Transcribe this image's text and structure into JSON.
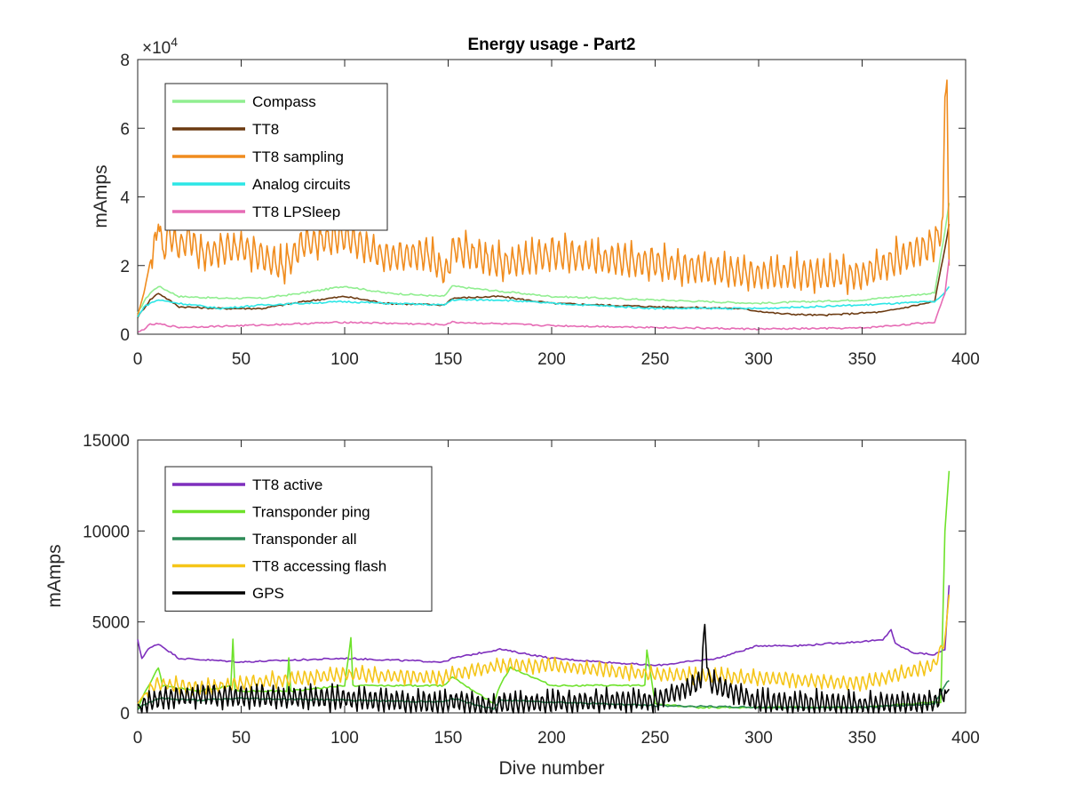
{
  "title": "Energy usage - Part2",
  "chart_data": [
    {
      "type": "line",
      "title": "Energy usage - Part2",
      "xlabel": "",
      "ylabel": "mAmps",
      "xlim": [
        0,
        400
      ],
      "ylim": [
        0,
        80000
      ],
      "x_ticks": [
        "0",
        "50",
        "100",
        "150",
        "200",
        "250",
        "300",
        "350",
        "400"
      ],
      "y_ticks": [
        "0",
        "2",
        "4",
        "6",
        "8"
      ],
      "y_exponent_label": "×10",
      "y_exponent_power": "4",
      "grid": false,
      "legend_position": "top-left",
      "series": [
        {
          "name": "Compass",
          "color": "#90ee90",
          "x": [
            0,
            3,
            6,
            10,
            20,
            40,
            60,
            80,
            100,
            120,
            148,
            152,
            175,
            200,
            250,
            300,
            350,
            385,
            390,
            392
          ],
          "values": [
            6000,
            9500,
            12000,
            14000,
            11000,
            10500,
            10500,
            12000,
            14000,
            12000,
            11000,
            14000,
            12500,
            11000,
            10000,
            9000,
            10000,
            12000,
            30000,
            38000
          ]
        },
        {
          "name": "TT8",
          "color": "#6b3a11",
          "x": [
            0,
            3,
            6,
            10,
            20,
            40,
            60,
            80,
            100,
            120,
            148,
            152,
            175,
            200,
            250,
            290,
            310,
            330,
            360,
            385,
            390,
            392
          ],
          "values": [
            5000,
            7500,
            10000,
            12000,
            8000,
            7500,
            7500,
            9500,
            11000,
            9000,
            8500,
            10500,
            11000,
            9000,
            8000,
            7500,
            6000,
            5500,
            6500,
            9500,
            25000,
            32000
          ]
        },
        {
          "name": "TT8 sampling",
          "color": "#f08c1e",
          "x": [
            0,
            3,
            6,
            9,
            10,
            12,
            15,
            20,
            25,
            30,
            50,
            70,
            80,
            100,
            120,
            140,
            148,
            150,
            152,
            175,
            200,
            250,
            300,
            350,
            385,
            389,
            390,
            391,
            392
          ],
          "values": [
            5500,
            12000,
            21000,
            25000,
            34000,
            22000,
            28000,
            24000,
            27000,
            22000,
            24000,
            18000,
            25000,
            27000,
            21000,
            22000,
            17000,
            17000,
            24000,
            19000,
            22000,
            19000,
            16000,
            16000,
            25000,
            30000,
            68000,
            74000,
            20000
          ],
          "spikes": {
            "start": 7,
            "end": 390,
            "step": 3.2,
            "amplitude": 11000,
            "period": 3.2
          }
        },
        {
          "name": "Analog circuits",
          "color": "#2ce6e6",
          "x": [
            0,
            3,
            6,
            10,
            20,
            40,
            60,
            80,
            100,
            120,
            148,
            152,
            175,
            200,
            250,
            300,
            350,
            385,
            390,
            392
          ],
          "values": [
            5000,
            8000,
            9000,
            10000,
            9000,
            7500,
            8500,
            9000,
            9500,
            9000,
            8500,
            10000,
            10000,
            9000,
            7500,
            7500,
            8500,
            9500,
            12000,
            14000
          ]
        },
        {
          "name": "TT8 LPSleep",
          "color": "#e66cb5",
          "x": [
            0,
            3,
            6,
            10,
            20,
            50,
            100,
            148,
            152,
            200,
            250,
            300,
            350,
            385,
            390,
            392
          ],
          "values": [
            400,
            1500,
            2800,
            3000,
            2000,
            2500,
            3500,
            2800,
            3500,
            2500,
            2000,
            1500,
            1800,
            3500,
            12000,
            22000
          ]
        }
      ]
    },
    {
      "type": "line",
      "title": "",
      "xlabel": "Dive number",
      "ylabel": "mAmps",
      "xlim": [
        0,
        400
      ],
      "ylim": [
        0,
        15000
      ],
      "x_ticks": [
        "0",
        "50",
        "100",
        "150",
        "200",
        "250",
        "300",
        "350",
        "400"
      ],
      "y_ticks": [
        "0",
        "5000",
        "10000",
        "15000"
      ],
      "grid": false,
      "legend_position": "top-left",
      "series": [
        {
          "name": "TT8 active",
          "color": "#7e2fbd",
          "x": [
            0,
            2,
            5,
            10,
            20,
            50,
            100,
            148,
            152,
            175,
            200,
            250,
            280,
            300,
            320,
            360,
            364,
            366,
            375,
            385,
            390,
            392
          ],
          "values": [
            4000,
            3000,
            3500,
            3800,
            3000,
            2800,
            3000,
            2800,
            3000,
            3500,
            3000,
            2600,
            3000,
            3700,
            3700,
            4000,
            4600,
            3800,
            3300,
            3200,
            3500,
            7000
          ]
        },
        {
          "name": "Transponder ping",
          "color": "#6ee22b",
          "x": [
            0,
            2,
            10,
            12,
            30,
            45,
            46,
            47,
            72,
            73,
            74,
            100,
            103,
            104,
            148,
            152,
            172,
            175,
            180,
            200,
            245,
            246,
            250,
            270,
            300,
            350,
            388,
            390,
            392
          ],
          "values": [
            200,
            800,
            2500,
            1500,
            1200,
            1500,
            4100,
            1200,
            1200,
            3000,
            1200,
            1500,
            4100,
            1500,
            1500,
            2000,
            500,
            1500,
            2500,
            1500,
            1500,
            3500,
            500,
            300,
            300,
            300,
            600,
            10000,
            13300
          ]
        },
        {
          "name": "Transponder all",
          "color": "#2e8b57",
          "x": [
            0,
            2,
            10,
            30,
            50,
            100,
            148,
            152,
            172,
            175,
            200,
            250,
            300,
            350,
            385,
            390,
            392
          ],
          "values": [
            200,
            400,
            800,
            700,
            800,
            700,
            600,
            800,
            200,
            700,
            600,
            400,
            300,
            300,
            500,
            1500,
            1800
          ]
        },
        {
          "name": "TT8 accessing flash",
          "color": "#f5c518",
          "x": [
            0,
            3,
            10,
            30,
            50,
            100,
            148,
            152,
            175,
            200,
            250,
            300,
            350,
            385,
            390,
            392
          ],
          "values": [
            500,
            1000,
            1500,
            1200,
            1500,
            2000,
            1800,
            2000,
            2500,
            2500,
            2000,
            1800,
            1500,
            2500,
            4000,
            6500
          ],
          "spikes": {
            "start": 5,
            "end": 390,
            "amplitude": 900,
            "period": 3.1
          }
        },
        {
          "name": "GPS",
          "color": "#000000",
          "x": [
            0,
            2,
            5,
            10,
            30,
            50,
            100,
            148,
            152,
            172,
            175,
            200,
            250,
            272,
            274,
            276,
            300,
            350,
            385,
            390,
            392
          ],
          "values": [
            500,
            200,
            400,
            600,
            800,
            700,
            600,
            300,
            500,
            100,
            300,
            400,
            500,
            1500,
            4600,
            1500,
            400,
            300,
            400,
            1000,
            1300
          ],
          "spikes": {
            "start": 2,
            "end": 390,
            "amplitude": 1400,
            "period": 2.6
          }
        }
      ]
    }
  ]
}
